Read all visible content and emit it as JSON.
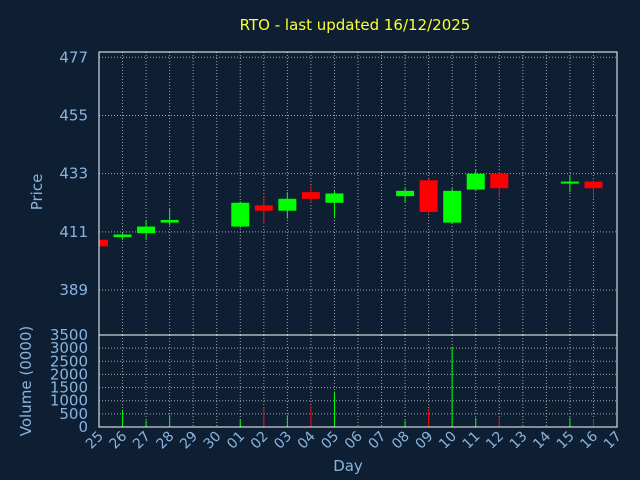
{
  "colors": {
    "background": "#0e1f33",
    "title": "#ffff33",
    "axis_text": "#8ab4e0",
    "frame": "#ffffff",
    "grid": "#c8c8c8",
    "up": "#00ff00",
    "down": "#ff0000"
  },
  "chart_data": {
    "type": "candlestick",
    "title": "RTO - last updated 16/12/2025",
    "price_axis": {
      "label": "Price",
      "ticks": [
        389,
        411,
        433,
        455,
        477
      ],
      "ylim": [
        372,
        479
      ]
    },
    "volume_axis": {
      "label": "Volume (0000)",
      "ticks": [
        0,
        500,
        1000,
        1500,
        2000,
        2500,
        3000,
        3500
      ],
      "ylim": [
        0,
        3500
      ]
    },
    "x_axis": {
      "label": "Day",
      "ticks": [
        "25",
        "26",
        "27",
        "28",
        "29",
        "30",
        "01",
        "02",
        "03",
        "04",
        "05",
        "06",
        "07",
        "08",
        "09",
        "10",
        "11",
        "12",
        "13",
        "14",
        "15",
        "16",
        "17"
      ]
    },
    "grid": true,
    "candles": [
      {
        "day": "25",
        "open": 408,
        "high": 408.5,
        "low": 405,
        "close": 405.5,
        "volume": 50
      },
      {
        "day": "26",
        "open": 409,
        "high": 410.5,
        "low": 408,
        "close": 410,
        "volume": 650
      },
      {
        "day": "27",
        "open": 410.5,
        "high": 415.5,
        "low": 408,
        "close": 413,
        "volume": 250
      },
      {
        "day": "28",
        "open": 414.5,
        "high": 420,
        "low": 413.5,
        "close": 415.5,
        "volume": 450
      },
      {
        "day": "01",
        "open": 413,
        "high": 422.5,
        "low": 412.5,
        "close": 422,
        "volume": 300
      },
      {
        "day": "02",
        "open": 421,
        "high": 424.5,
        "low": 414,
        "close": 419,
        "volume": 750
      },
      {
        "day": "03",
        "open": 419,
        "high": 426,
        "low": 416,
        "close": 423.5,
        "volume": 450
      },
      {
        "day": "04",
        "open": 426,
        "high": 428.5,
        "low": 422,
        "close": 423.5,
        "volume": 800
      },
      {
        "day": "05",
        "open": 422,
        "high": 426.5,
        "low": 416.5,
        "close": 425.5,
        "volume": 1350
      },
      {
        "day": "08",
        "open": 424.5,
        "high": 427.5,
        "low": 422,
        "close": 426.5,
        "volume": 250
      },
      {
        "day": "09",
        "open": 430.5,
        "high": 431,
        "low": 418,
        "close": 418.5,
        "volume": 700
      },
      {
        "day": "10",
        "open": 414.5,
        "high": 427.5,
        "low": 414,
        "close": 426.5,
        "volume": 3050
      },
      {
        "day": "11",
        "open": 427,
        "high": 434.5,
        "low": 426.5,
        "close": 433,
        "volume": 350
      },
      {
        "day": "12",
        "open": 433,
        "high": 433.5,
        "low": 424,
        "close": 427.5,
        "volume": 400
      },
      {
        "day": "15",
        "open": 429.5,
        "high": 432.5,
        "low": 426,
        "close": 430,
        "volume": 350
      },
      {
        "day": "16",
        "open": 430,
        "high": 430.5,
        "low": 423.5,
        "close": 427.5,
        "volume": 300
      }
    ]
  }
}
